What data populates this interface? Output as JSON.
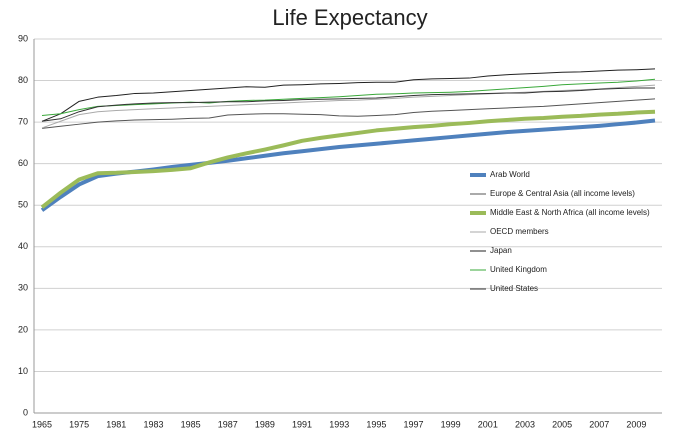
{
  "chart_data": {
    "type": "line",
    "title": "Life Expectancy",
    "categories": [
      "1965",
      null,
      "1975",
      null,
      "1981",
      null,
      "1983",
      null,
      "1985",
      null,
      "1987",
      null,
      "1989",
      null,
      "1991",
      null,
      "1993",
      null,
      "1995",
      null,
      "1997",
      null,
      "1999",
      null,
      "2001",
      null,
      "2003",
      null,
      "2005",
      null,
      "2007",
      null,
      "2009",
      null
    ],
    "ylim": [
      0,
      90
    ],
    "yticks": [
      0,
      10,
      20,
      30,
      40,
      50,
      60,
      70,
      80,
      90
    ],
    "grid": true,
    "legend": "right",
    "series": [
      {
        "name": "Arab World",
        "color": "#4f81bd",
        "width": 4,
        "values": [
          48.8,
          52,
          55,
          57,
          57.6,
          58.1,
          58.6,
          59.2,
          59.7,
          60.2,
          60.7,
          61.3,
          61.9,
          62.5,
          63,
          63.5,
          64,
          64.4,
          64.8,
          65.2,
          65.6,
          66,
          66.4,
          66.8,
          67.2,
          67.6,
          67.9,
          68.2,
          68.5,
          68.8,
          69.1,
          69.5,
          69.9,
          70.4
        ]
      },
      {
        "name": "Europe & Central Asia (all income levels)",
        "color": "#555555",
        "width": 1,
        "values": [
          68.5,
          69,
          69.5,
          70,
          70.3,
          70.5,
          70.6,
          70.7,
          70.9,
          71,
          71.7,
          71.9,
          72,
          72,
          71.9,
          71.8,
          71.5,
          71.4,
          71.6,
          71.8,
          72.3,
          72.6,
          72.8,
          73,
          73.2,
          73.4,
          73.6,
          73.8,
          74.1,
          74.4,
          74.7,
          75,
          75.3,
          75.6
        ]
      },
      {
        "name": "Middle East & North Africa (all income levels)",
        "color": "#9bbb59",
        "width": 4,
        "values": [
          49.5,
          53,
          56.2,
          57.7,
          57.8,
          58,
          58.2,
          58.5,
          58.9,
          60.3,
          61.5,
          62.5,
          63.4,
          64.4,
          65.5,
          66.2,
          66.8,
          67.4,
          68,
          68.4,
          68.8,
          69.1,
          69.5,
          69.8,
          70.2,
          70.5,
          70.8,
          71,
          71.3,
          71.5,
          71.8,
          72,
          72.3,
          72.5
        ]
      },
      {
        "name": "OECD members",
        "color": "#aaaaaa",
        "width": 1,
        "values": [
          68.6,
          70.2,
          71.8,
          72.5,
          72.8,
          73,
          73.2,
          73.4,
          73.6,
          73.8,
          74,
          74.2,
          74.4,
          74.6,
          74.8,
          75,
          75.2,
          75.3,
          75.5,
          75.7,
          76,
          76.2,
          76.4,
          76.6,
          76.8,
          77,
          77.2,
          77.4,
          77.6,
          77.8,
          78,
          78.3,
          78.6,
          78.9
        ]
      },
      {
        "name": "Japan",
        "color": "#222222",
        "width": 1,
        "values": [
          70.2,
          72,
          75,
          76,
          76.4,
          76.9,
          77,
          77.3,
          77.6,
          77.9,
          78.2,
          78.5,
          78.4,
          78.9,
          79,
          79.2,
          79.3,
          79.5,
          79.6,
          79.6,
          80.2,
          80.4,
          80.5,
          80.6,
          81.1,
          81.4,
          81.6,
          81.8,
          82,
          82.1,
          82.3,
          82.5,
          82.6,
          82.8
        ]
      },
      {
        "name": "United Kingdom",
        "color": "#3aa83a",
        "width": 1,
        "values": [
          71.6,
          72,
          73,
          73.8,
          74,
          74.2,
          74.4,
          74.6,
          74.8,
          74.6,
          75,
          75.2,
          75.3,
          75.5,
          75.7,
          75.9,
          76.1,
          76.4,
          76.7,
          76.8,
          77,
          77.1,
          77.2,
          77.4,
          77.7,
          78,
          78.3,
          78.6,
          79,
          79.2,
          79.4,
          79.6,
          79.9,
          80.3
        ]
      },
      {
        "name": "United States",
        "color": "#333333",
        "width": 1,
        "values": [
          70.2,
          70.8,
          72.5,
          73.7,
          74.1,
          74.4,
          74.6,
          74.7,
          74.7,
          74.8,
          74.9,
          74.9,
          75.1,
          75.2,
          75.4,
          75.5,
          75.6,
          75.7,
          75.8,
          76.1,
          76.4,
          76.6,
          76.7,
          76.8,
          76.9,
          77,
          77,
          77.3,
          77.4,
          77.6,
          77.9,
          78.1,
          78.2,
          78.2
        ]
      }
    ]
  }
}
